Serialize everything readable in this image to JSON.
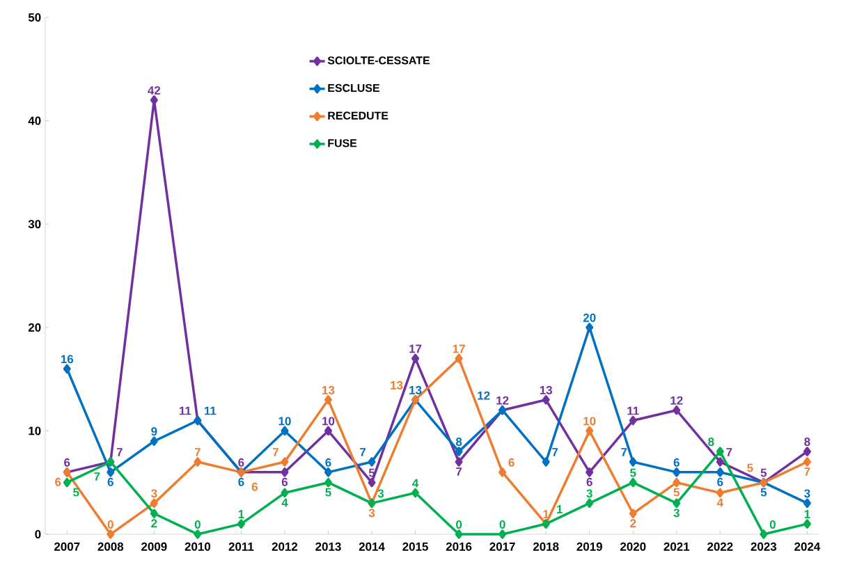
{
  "chart_data": {
    "type": "line",
    "categories": [
      "2007",
      "2008",
      "2009",
      "2010",
      "2011",
      "2012",
      "2013",
      "2014",
      "2015",
      "2016",
      "2017",
      "2018",
      "2019",
      "2020",
      "2021",
      "2022",
      "2023",
      "2024"
    ],
    "series": [
      {
        "name": "SCIOLTE-CESSATE",
        "color": "#7030a0",
        "values": [
          6,
          7,
          42,
          11,
          6,
          6,
          10,
          5,
          17,
          7,
          12,
          13,
          6,
          11,
          12,
          7,
          5,
          8
        ]
      },
      {
        "name": "ESCLUSE",
        "color": "#0070c0",
        "values": [
          16,
          6,
          9,
          11,
          6,
          10,
          6,
          7,
          13,
          8,
          12,
          7,
          20,
          7,
          6,
          6,
          5,
          3
        ]
      },
      {
        "name": "RECEDUTE",
        "color": "#ed7d31",
        "values": [
          6,
          0,
          3,
          7,
          6,
          7,
          13,
          3,
          13,
          17,
          6,
          1,
          10,
          2,
          5,
          4,
          5,
          7
        ]
      },
      {
        "name": "FUSE",
        "color": "#00b050",
        "values": [
          5,
          7,
          2,
          0,
          1,
          4,
          5,
          3,
          4,
          0,
          0,
          1,
          3,
          5,
          3,
          8,
          0,
          1
        ]
      }
    ],
    "ylim": [
      0,
      50
    ],
    "yticks": [
      0,
      10,
      20,
      30,
      40,
      50
    ],
    "marker": "diamond",
    "data_labels": true,
    "legend": "top",
    "grid": false
  }
}
